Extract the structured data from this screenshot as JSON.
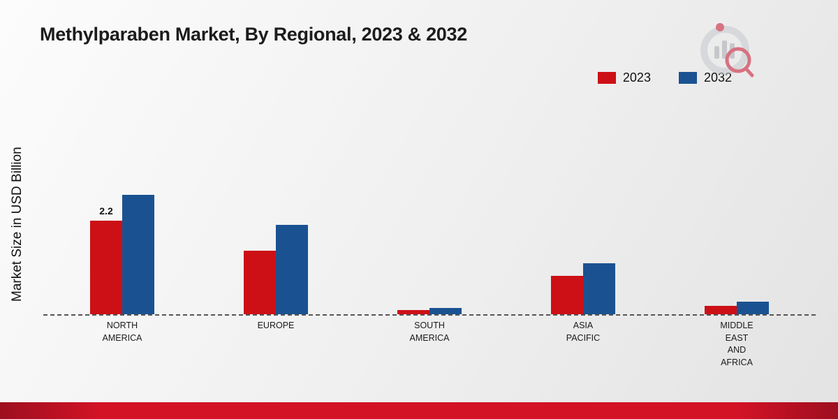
{
  "title": "Methylparaben Market, By Regional, 2023 & 2032",
  "ylabel": "Market Size in USD Billion",
  "legend": [
    {
      "label": "2023",
      "color": "#cc1016"
    },
    {
      "label": "2032",
      "color": "#1a5291"
    }
  ],
  "footer_color": "#d31226",
  "brand": {
    "logo": "market-research-logo"
  },
  "chart_data": {
    "type": "bar",
    "title": "Methylparaben Market, By Regional, 2023 & 2032",
    "xlabel": "",
    "ylabel": "Market Size in USD Billion",
    "ylim": [
      0,
      3
    ],
    "grid": false,
    "legend_position": "top-right",
    "baseline_style": "dashed",
    "categories": [
      "NORTH AMERICA",
      "EUROPE",
      "SOUTH AMERICA",
      "ASIA PACIFIC",
      "MIDDLE EAST AND AFRICA"
    ],
    "category_lines": [
      [
        "NORTH",
        "AMERICA"
      ],
      [
        "EUROPE"
      ],
      [
        "SOUTH",
        "AMERICA"
      ],
      [
        "ASIA",
        "PACIFIC"
      ],
      [
        "MIDDLE",
        "EAST",
        "AND",
        "AFRICA"
      ]
    ],
    "series": [
      {
        "name": "2023",
        "color": "#cc1016",
        "values": [
          2.2,
          1.5,
          0.1,
          0.9,
          0.2
        ]
      },
      {
        "name": "2032",
        "color": "#1a5291",
        "values": [
          2.8,
          2.1,
          0.15,
          1.2,
          0.3
        ]
      }
    ],
    "bar_labels": [
      {
        "category_index": 0,
        "series_index": 0,
        "text": "2.2"
      }
    ]
  }
}
